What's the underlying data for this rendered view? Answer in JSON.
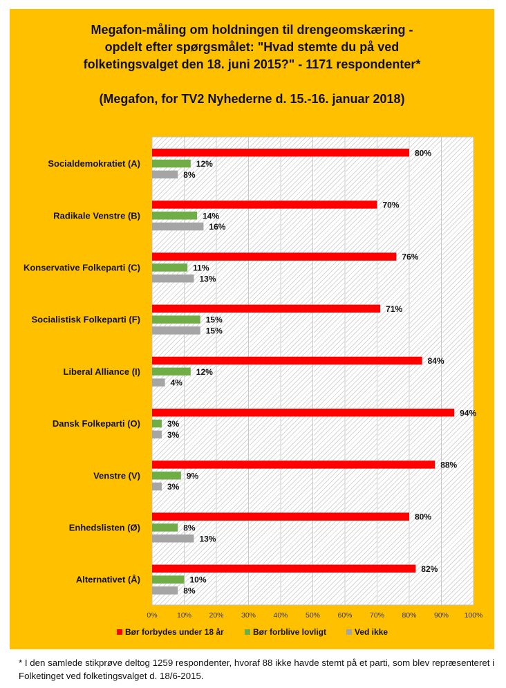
{
  "title": {
    "line1": "Megafon-måling om holdningen til drengeomskæring -",
    "line2": "opdelt efter spørgsmålet: \"Hvad stemte du på ved",
    "line3": "folketingsvalget den 18. juni 2015?\" - 1171 respondenter*",
    "subtitle": "(Megafon, for TV2 Nyhederne d. 15.-16. januar 2018)"
  },
  "chart_data": {
    "type": "bar",
    "orientation": "horizontal",
    "categories": [
      "Socialdemokratiet (A)",
      "Radikale Venstre (B)",
      "Konservative Folkeparti (C)",
      "Socialistisk Folkeparti (F)",
      "Liberal Alliance (I)",
      "Dansk Folkeparti (O)",
      "Venstre (V)",
      "Enhedslisten (Ø)",
      "Alternativet (Å)"
    ],
    "series": [
      {
        "name": "Bør forbydes under 18 år",
        "color": "#ff0000",
        "values": [
          80,
          70,
          76,
          71,
          84,
          94,
          88,
          80,
          82
        ]
      },
      {
        "name": "Bør forblive lovligt",
        "color": "#70ad47",
        "values": [
          12,
          14,
          11,
          15,
          12,
          3,
          9,
          8,
          10
        ]
      },
      {
        "name": "Ved ikke",
        "color": "#a5a5a5",
        "values": [
          8,
          16,
          13,
          15,
          4,
          3,
          3,
          13,
          8
        ]
      }
    ],
    "value_suffix": "%",
    "xlim": [
      0,
      100
    ],
    "xticks": [
      0,
      10,
      20,
      30,
      40,
      50,
      60,
      70,
      80,
      90,
      100
    ],
    "xtick_labels": [
      "0%",
      "10%",
      "20%",
      "30%",
      "40%",
      "50%",
      "60%",
      "70%",
      "80%",
      "90%",
      "100%"
    ],
    "legend_position": "bottom",
    "grid": true
  },
  "footnote": "* I den samlede stikprøve deltog 1259 respondenter, hvoraf 88 ikke havde stemt på et parti, som blev repræsenteret i Folketinget ved folketingsvalget d. 18/6-2015."
}
